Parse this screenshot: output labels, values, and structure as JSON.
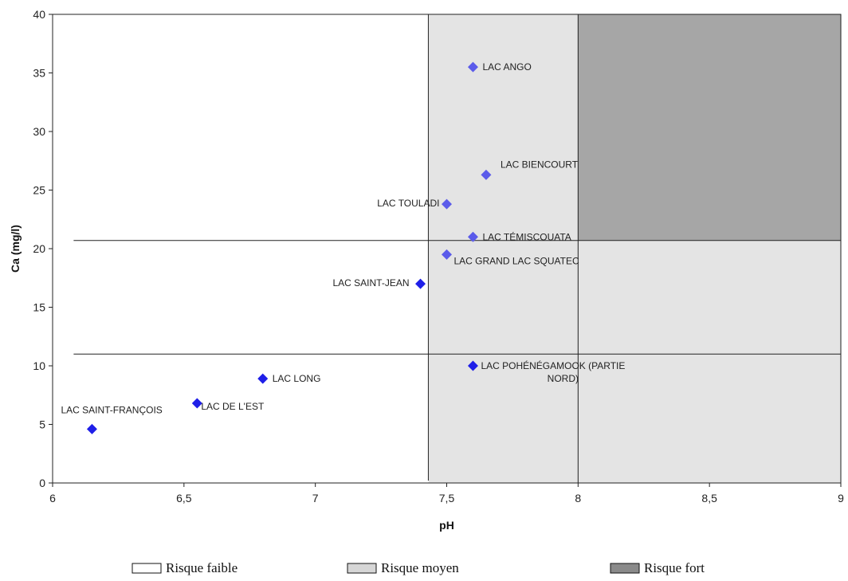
{
  "chart_data": {
    "type": "scatter",
    "xlabel": "pH",
    "ylabel": "Ca (mg/l)",
    "xlim": [
      6,
      9
    ],
    "ylim": [
      0,
      40
    ],
    "x_ticks": [
      {
        "value": 6,
        "label": "6"
      },
      {
        "value": 6.5,
        "label": "6,5"
      },
      {
        "value": 7,
        "label": "7"
      },
      {
        "value": 7.5,
        "label": "7,5"
      },
      {
        "value": 8,
        "label": "8"
      },
      {
        "value": 8.5,
        "label": "8,5"
      },
      {
        "value": 9,
        "label": "9"
      }
    ],
    "y_ticks": [
      {
        "value": 0,
        "label": "0"
      },
      {
        "value": 5,
        "label": "5"
      },
      {
        "value": 10,
        "label": "10"
      },
      {
        "value": 15,
        "label": "15"
      },
      {
        "value": 20,
        "label": "20"
      },
      {
        "value": 25,
        "label": "25"
      },
      {
        "value": 30,
        "label": "30"
      },
      {
        "value": 35,
        "label": "35"
      },
      {
        "value": 40,
        "label": "40"
      }
    ],
    "thresholds": {
      "ph": [
        7.43,
        8.0
      ],
      "ca": [
        11,
        20.7
      ]
    },
    "zones": [
      {
        "name": "Risque faible",
        "color": "#ffffff"
      },
      {
        "name": "Risque moyen",
        "color": "#e4e4e4"
      },
      {
        "name": "Risque fort",
        "color": "#a6a6a6"
      }
    ],
    "points": [
      {
        "label": "LAC ANGO",
        "x": 7.6,
        "y": 35.5,
        "color": "#5b5bea"
      },
      {
        "label": "LAC BIENCOURT",
        "x": 7.65,
        "y": 26.3,
        "color": "#5b5bea"
      },
      {
        "label": "LAC TOULADI",
        "x": 7.5,
        "y": 23.8,
        "color": "#5b5bea"
      },
      {
        "label": "LAC TÉMISCOUATA",
        "x": 7.6,
        "y": 21.0,
        "color": "#5b5bea"
      },
      {
        "label": "LAC GRAND LAC SQUATEC",
        "x": 7.5,
        "y": 19.5,
        "color": "#5b5bea"
      },
      {
        "label": "LAC SAINT-JEAN",
        "x": 7.4,
        "y": 17.0,
        "color": "#1f1fe8"
      },
      {
        "label": "LAC POHÉNÉGAMOOK (PARTIE",
        "label_line2": "NORD)",
        "x": 7.6,
        "y": 10.0,
        "color": "#1f1fe8"
      },
      {
        "label": "LAC LONG",
        "x": 6.8,
        "y": 8.9,
        "color": "#1f1fe8"
      },
      {
        "label": "LAC DE L'EST",
        "x": 6.55,
        "y": 6.8,
        "color": "#1f1fe8"
      },
      {
        "label": "LAC SAINT-FRANÇOIS",
        "x": 6.15,
        "y": 4.6,
        "color": "#1f1fe8"
      }
    ],
    "legend": [
      {
        "label": "Risque faible",
        "color": "#ffffff"
      },
      {
        "label": "Risque moyen",
        "color": "#d6d6d6"
      },
      {
        "label": "Risque fort",
        "color": "#8a8a8a"
      }
    ],
    "legend_position": "bottom"
  }
}
